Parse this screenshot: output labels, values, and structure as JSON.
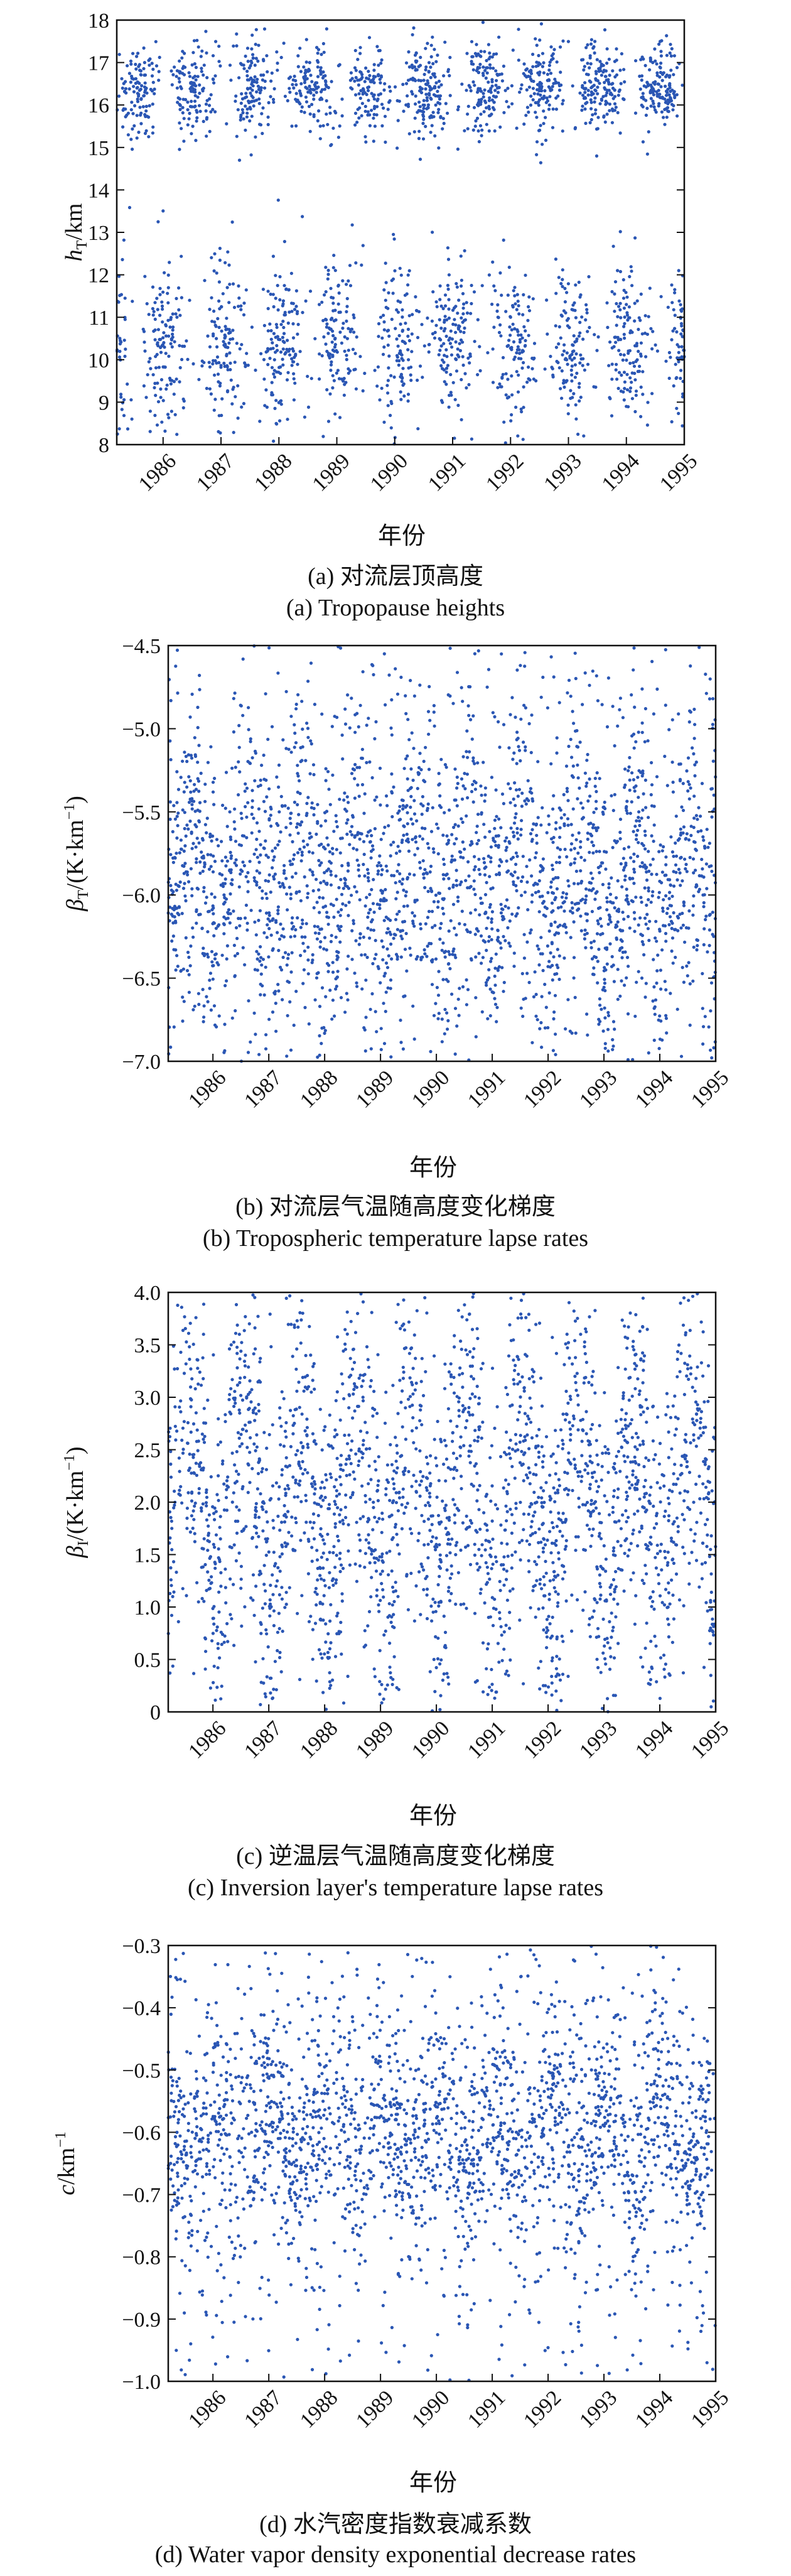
{
  "chart_data": [
    {
      "type": "scatter",
      "id": "a",
      "ylabel": "h_T/km",
      "ylabel_main": "h",
      "ylabel_sub": "T",
      "ylabel_rest": "/km",
      "xlabel": "年份",
      "caption_cn": "(a) 对流层顶高度",
      "caption_en": "(a) Tropopause heights",
      "ylim": [
        8,
        18
      ],
      "xlim": [
        1985.2,
        1995.0
      ],
      "yticks": [
        "8",
        "9",
        "10",
        "11",
        "12",
        "13",
        "14",
        "15",
        "16",
        "17",
        "18"
      ],
      "xticks": [
        "1986",
        "1987",
        "1988",
        "1989",
        "1990",
        "1991",
        "1992",
        "1993",
        "1994",
        "1995"
      ],
      "point_color": "#2a56b4",
      "pattern": "seasonal cycle: ~16.5 km in summer, ~10 km in winter",
      "seed": 11
    },
    {
      "type": "scatter",
      "id": "b",
      "ylabel": "β_T/(K·km⁻¹)",
      "ylabel_main": "β",
      "ylabel_sub": "T",
      "ylabel_rest": "/(K·km",
      "ylabel_sup": "−1",
      "ylabel_end": ")",
      "xlabel": "年份",
      "caption_cn": "(b) 对流层气温随高度变化梯度",
      "caption_en": "(b) Tropospheric temperature lapse rates",
      "ylim": [
        -7.0,
        -4.5
      ],
      "xlim": [
        1985.2,
        1995.0
      ],
      "yticks": [
        "−7.0",
        "−6.5",
        "−6.0",
        "−5.5",
        "−5.0",
        "−4.5"
      ],
      "xticks": [
        "1986",
        "1987",
        "1988",
        "1989",
        "1990",
        "1991",
        "1992",
        "1993",
        "1994",
        "1995"
      ],
      "point_color": "#2a56b4",
      "pattern": "centered near −5.9 with large seasonal spread",
      "seed": 23
    },
    {
      "type": "scatter",
      "id": "c",
      "ylabel": "β_I/(K·km⁻¹)",
      "ylabel_main": "β",
      "ylabel_sub": "I",
      "ylabel_rest": "/(K·km",
      "ylabel_sup": "−1",
      "ylabel_end": ")",
      "xlabel": "年份",
      "caption_cn": "(c) 逆温层气温随高度变化梯度",
      "caption_en": "(c) Inversion layer's temperature lapse rates",
      "ylim": [
        0,
        4.0
      ],
      "xlim": [
        1985.2,
        1995.0
      ],
      "yticks": [
        "0",
        "0.5",
        "1.0",
        "1.5",
        "2.0",
        "2.5",
        "3.0",
        "3.5",
        "4.0"
      ],
      "xticks": [
        "1986",
        "1987",
        "1988",
        "1989",
        "1990",
        "1991",
        "1992",
        "1993",
        "1994",
        "1995"
      ],
      "point_color": "#2a56b4",
      "pattern": "broad spread 0–4 with seasonal clusters",
      "seed": 37
    },
    {
      "type": "scatter",
      "id": "d",
      "ylabel": "c/km⁻¹",
      "ylabel_main": "c",
      "ylabel_sub": "",
      "ylabel_rest": "/km",
      "ylabel_sup": "−1",
      "ylabel_end": "",
      "xlabel": "年份",
      "caption_cn": "(d) 水汽密度指数衰减系数",
      "caption_en": "(d) Water vapor density exponential decrease rates",
      "ylim": [
        -1.0,
        -0.3
      ],
      "xlim": [
        1985.2,
        1995.0
      ],
      "yticks": [
        "−1.0",
        "−0.9",
        "−0.8",
        "−0.7",
        "−0.6",
        "−0.5",
        "−0.4",
        "−0.3"
      ],
      "xticks": [
        "1986",
        "1987",
        "1988",
        "1989",
        "1990",
        "1991",
        "1992",
        "1993",
        "1994",
        "1995"
      ],
      "point_color": "#2a56b4",
      "pattern": "dense band near −0.6 with spikes toward −1.0",
      "seed": 53
    }
  ]
}
